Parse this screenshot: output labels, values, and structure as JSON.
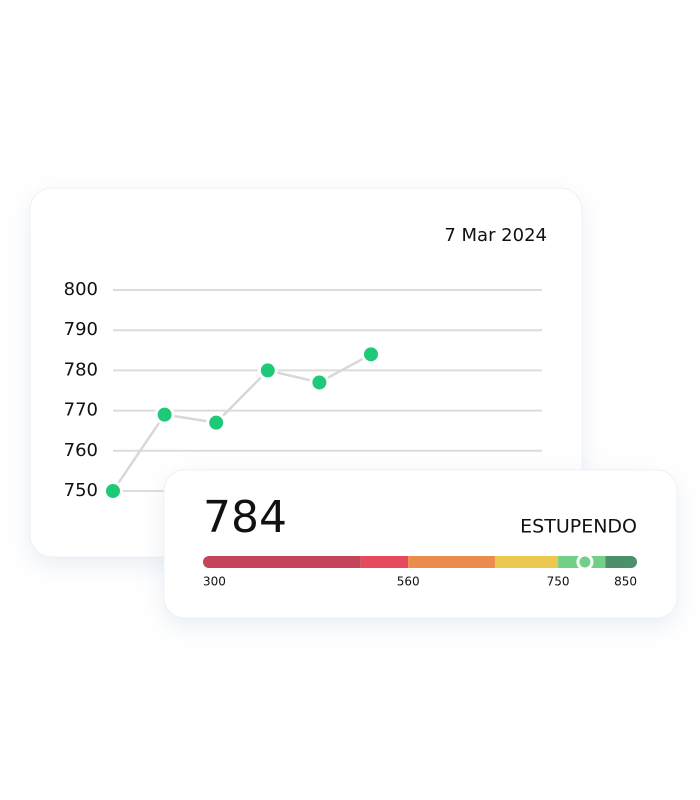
{
  "chart_data": [
    {
      "type": "line",
      "subtitle": "7 Mar 2024",
      "categories": [
        null,
        null,
        null,
        null,
        null,
        null
      ],
      "values": [
        750,
        769,
        767,
        780,
        777,
        784
      ],
      "color": "#1ec978",
      "ylim": [
        750,
        800
      ],
      "yticks": [
        750,
        760,
        770,
        780,
        790,
        800
      ],
      "grid": true
    },
    {
      "type": "gauge",
      "value": 784,
      "label": "ESTUPENDO",
      "label_color": "#5cc97a",
      "xlim": [
        300,
        850
      ],
      "xticks": [
        300,
        560,
        750,
        850
      ],
      "bands": [
        {
          "from": 300,
          "to": 500,
          "color": "#c4445a"
        },
        {
          "from": 500,
          "to": 560,
          "color": "#e54b5d"
        },
        {
          "from": 560,
          "to": 670,
          "color": "#ea8c4b"
        },
        {
          "from": 670,
          "to": 750,
          "color": "#ecc752"
        },
        {
          "from": 750,
          "to": 810,
          "color": "#74cf86"
        },
        {
          "from": 810,
          "to": 850,
          "color": "#4b9068"
        }
      ]
    }
  ]
}
